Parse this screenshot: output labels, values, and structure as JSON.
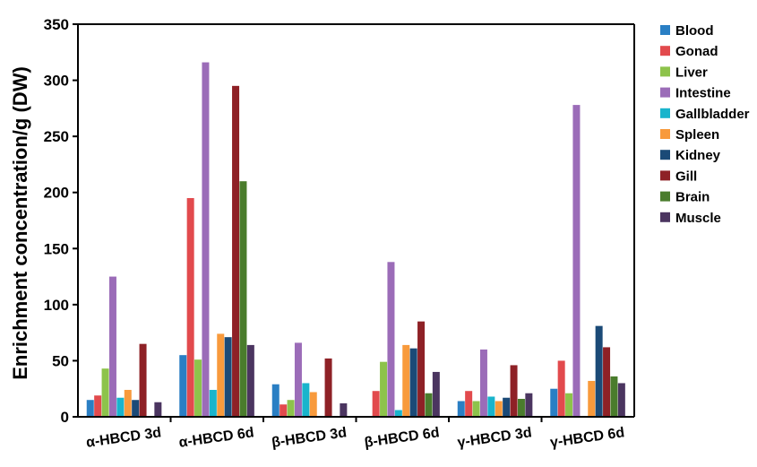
{
  "chart_data": {
    "type": "bar",
    "title": "",
    "xlabel": "",
    "ylabel": "Enrichment concentration/g (DW)",
    "ylim": [
      0,
      350
    ],
    "yticks": [
      0,
      50,
      100,
      150,
      200,
      250,
      300,
      350
    ],
    "grid": false,
    "legend_position": "right",
    "categories": [
      "α-HBCD 3d",
      "α-HBCD 6d",
      "β-HBCD 3d",
      "β-HBCD 6d",
      "γ-HBCD 3d",
      "γ-HBCD 6d"
    ],
    "series": [
      {
        "name": "Blood",
        "color": "#2a7fc4",
        "values": [
          15,
          55,
          29,
          0,
          14,
          25
        ]
      },
      {
        "name": "Gonad",
        "color": "#e24a4d",
        "values": [
          19,
          195,
          11,
          23,
          23,
          50
        ]
      },
      {
        "name": "Liver",
        "color": "#8dc34b",
        "values": [
          43,
          51,
          15,
          49,
          14,
          21
        ]
      },
      {
        "name": "Intestine",
        "color": "#9b6cb8",
        "values": [
          125,
          316,
          66,
          138,
          60,
          278
        ]
      },
      {
        "name": "Gallbladder",
        "color": "#19b4cc",
        "values": [
          17,
          24,
          30,
          6,
          18,
          0
        ]
      },
      {
        "name": "Spleen",
        "color": "#f89a3c",
        "values": [
          24,
          74,
          22,
          64,
          14,
          32
        ]
      },
      {
        "name": "Kidney",
        "color": "#1b4a77",
        "values": [
          15,
          71,
          0,
          61,
          17,
          81
        ]
      },
      {
        "name": "Gill",
        "color": "#8e2126",
        "values": [
          65,
          295,
          52,
          85,
          46,
          62
        ]
      },
      {
        "name": "Brain",
        "color": "#4a7c2c",
        "values": [
          0,
          210,
          0,
          21,
          16,
          36
        ]
      },
      {
        "name": "Muscle",
        "color": "#4b3560",
        "values": [
          13,
          64,
          12,
          40,
          21,
          30
        ]
      }
    ]
  }
}
